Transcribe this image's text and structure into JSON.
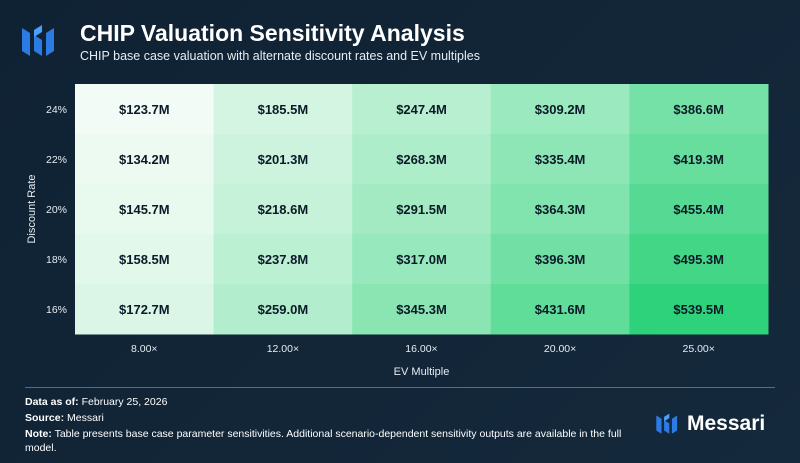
{
  "header": {
    "title": "CHIP Valuation Sensitivity Analysis",
    "subtitle": "CHIP base case valuation with alternate discount rates and EV multiples"
  },
  "chart_data": {
    "type": "heatmap",
    "title": "CHIP Valuation Sensitivity Analysis",
    "xlabel": "EV Multiple",
    "ylabel": "Discount Rate",
    "x_categories": [
      "8.00×",
      "12.00×",
      "16.00×",
      "20.00×",
      "25.00×"
    ],
    "y_categories": [
      "24%",
      "22%",
      "20%",
      "18%",
      "16%"
    ],
    "values": [
      [
        123.7,
        185.5,
        247.4,
        309.2,
        386.6
      ],
      [
        134.2,
        201.3,
        268.3,
        335.4,
        419.3
      ],
      [
        145.7,
        218.6,
        291.5,
        364.3,
        455.4
      ],
      [
        158.5,
        237.8,
        317.0,
        396.3,
        495.3
      ],
      [
        172.7,
        259.0,
        345.3,
        431.6,
        539.5
      ]
    ],
    "cell_labels": [
      [
        "$123.7M",
        "$185.5M",
        "$247.4M",
        "$309.2M",
        "$386.6M"
      ],
      [
        "$134.2M",
        "$201.3M",
        "$268.3M",
        "$335.4M",
        "$419.3M"
      ],
      [
        "$145.7M",
        "$218.6M",
        "$291.5M",
        "$364.3M",
        "$455.4M"
      ],
      [
        "$158.5M",
        "$237.8M",
        "$317.0M",
        "$396.3M",
        "$495.3M"
      ],
      [
        "$172.7M",
        "$259.0M",
        "$345.3M",
        "$431.6M",
        "$539.5M"
      ]
    ],
    "color_low": "#f2fbf5",
    "color_high": "#2ed27a"
  },
  "footer": {
    "date_label": "Data as of:",
    "date_value": "February 25, 2026",
    "source_label": "Source:",
    "source_value": "Messari",
    "note_label": "Note:",
    "note_value": "Table presents base case parameter sensitivities. Additional scenario-dependent sensitivity outputs are available in the full model."
  },
  "brand": {
    "name": "Messari"
  },
  "colors": {
    "background": "#13273a",
    "brand_blue": "#2c7be5"
  }
}
